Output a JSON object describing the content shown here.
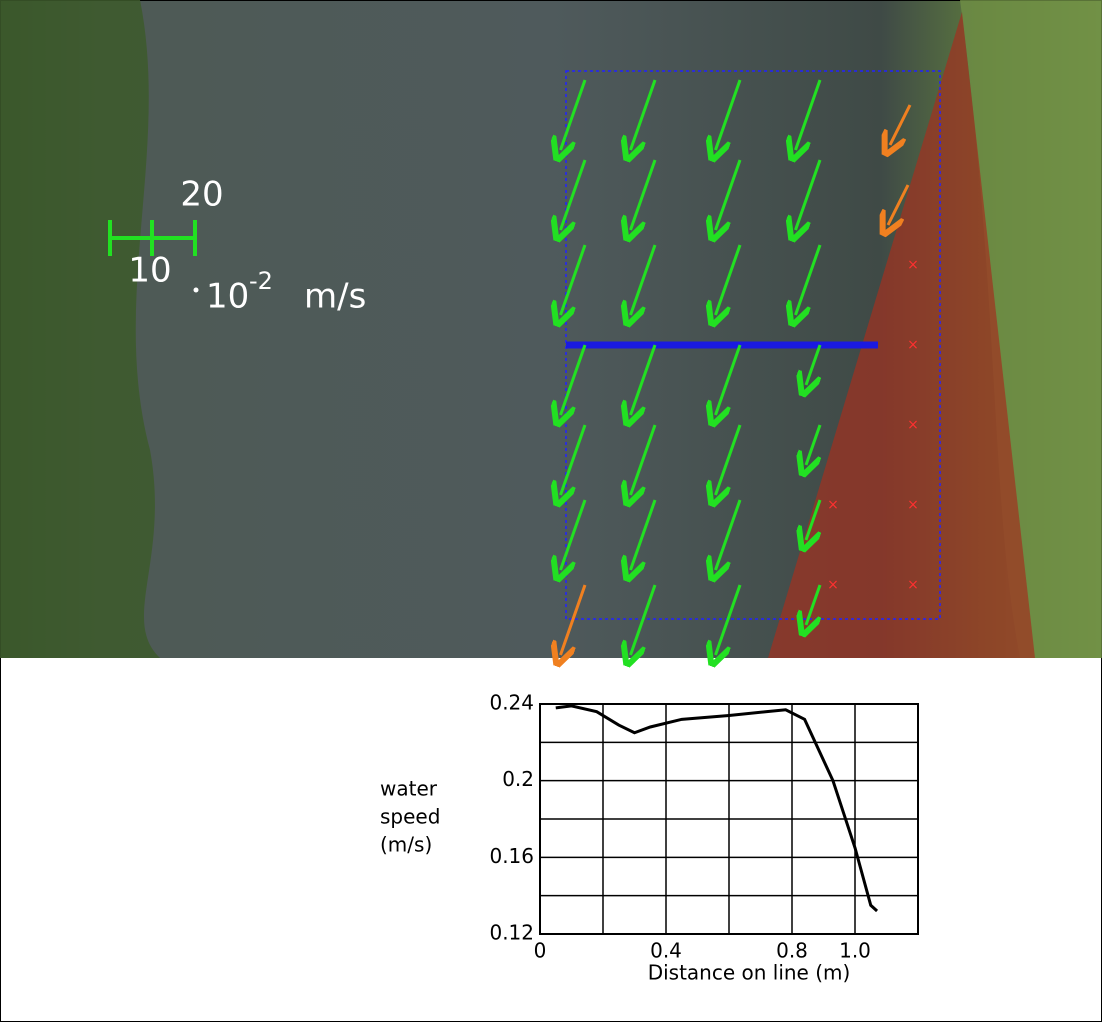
{
  "scale_bar": {
    "labels": [
      "10",
      "20"
    ],
    "unit_base": "10",
    "unit_exponent": "-2",
    "unit": "m/s"
  },
  "chart_data": {
    "type": "line",
    "xlabel": "Distance on line (m)",
    "ylabel": [
      "water",
      "speed",
      "(m/s)"
    ],
    "x": [
      0.05,
      0.1,
      0.18,
      0.25,
      0.3,
      0.35,
      0.45,
      0.6,
      0.72,
      0.78,
      0.84,
      0.93,
      1.0,
      1.05,
      1.07
    ],
    "values": [
      0.238,
      0.239,
      0.236,
      0.229,
      0.225,
      0.228,
      0.232,
      0.234,
      0.236,
      0.237,
      0.232,
      0.2,
      0.165,
      0.135,
      0.132
    ],
    "color": "#000000",
    "xlim": [
      0,
      1.2
    ],
    "ylim": [
      0.12,
      0.24
    ],
    "xticks": [
      0,
      {
        "value": 0.2,
        "label": null
      },
      0.4,
      {
        "value": 0.6,
        "label": null
      },
      0.8,
      {
        "value": 1,
        "label": "1.0"
      },
      {
        "value": 1.2,
        "label": null
      }
    ],
    "yticks": [
      0.12,
      {
        "value": 0.14,
        "label": null
      },
      0.16,
      {
        "value": 0.18,
        "label": null
      },
      0.2,
      {
        "value": 0.22,
        "label": null
      },
      0.24
    ],
    "grid": true
  }
}
